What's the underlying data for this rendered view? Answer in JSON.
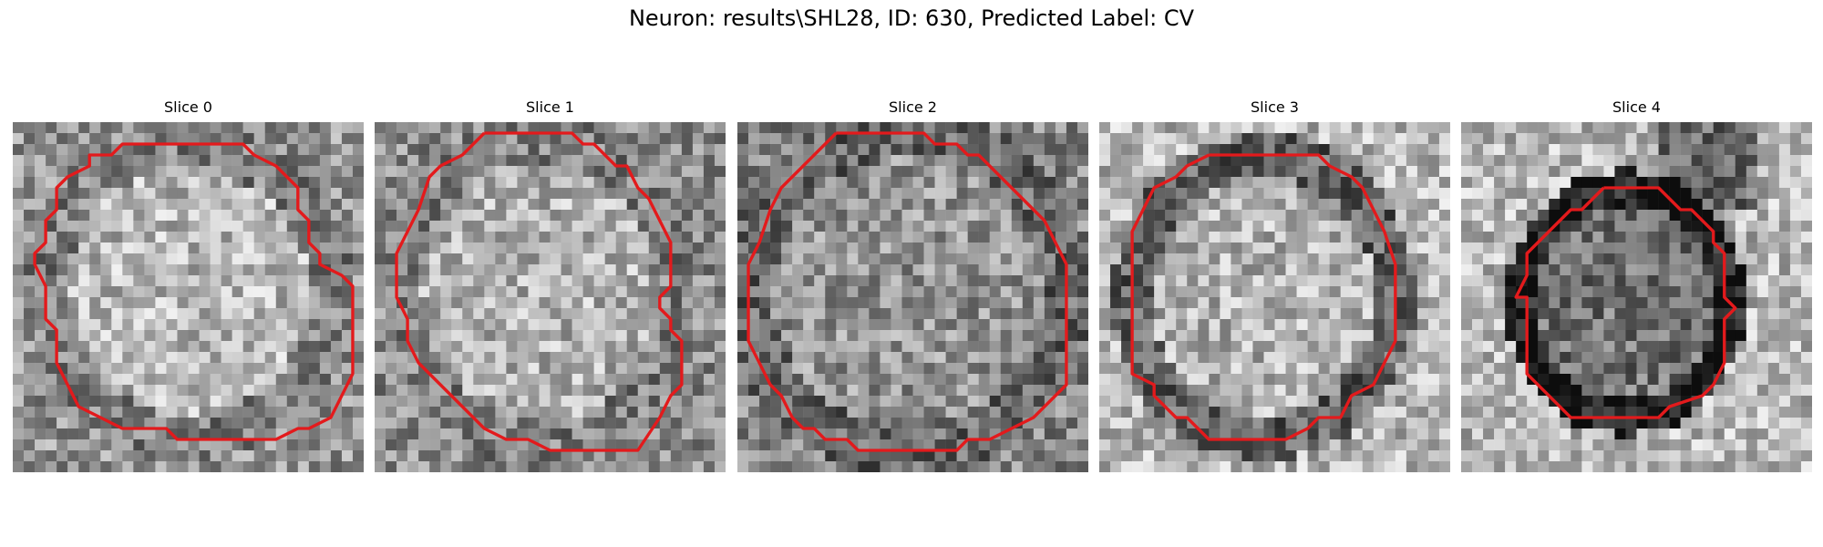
{
  "title": "Neuron: results\\SHL28, ID: 630, Predicted Label: CV",
  "colors": {
    "contour": "#e31a1c",
    "background": "#ffffff"
  },
  "slices": [
    {
      "label": "Slice 0"
    },
    {
      "label": "Slice 1"
    },
    {
      "label": "Slice 2"
    },
    {
      "label": "Slice 3"
    },
    {
      "label": "Slice 4"
    }
  ]
}
